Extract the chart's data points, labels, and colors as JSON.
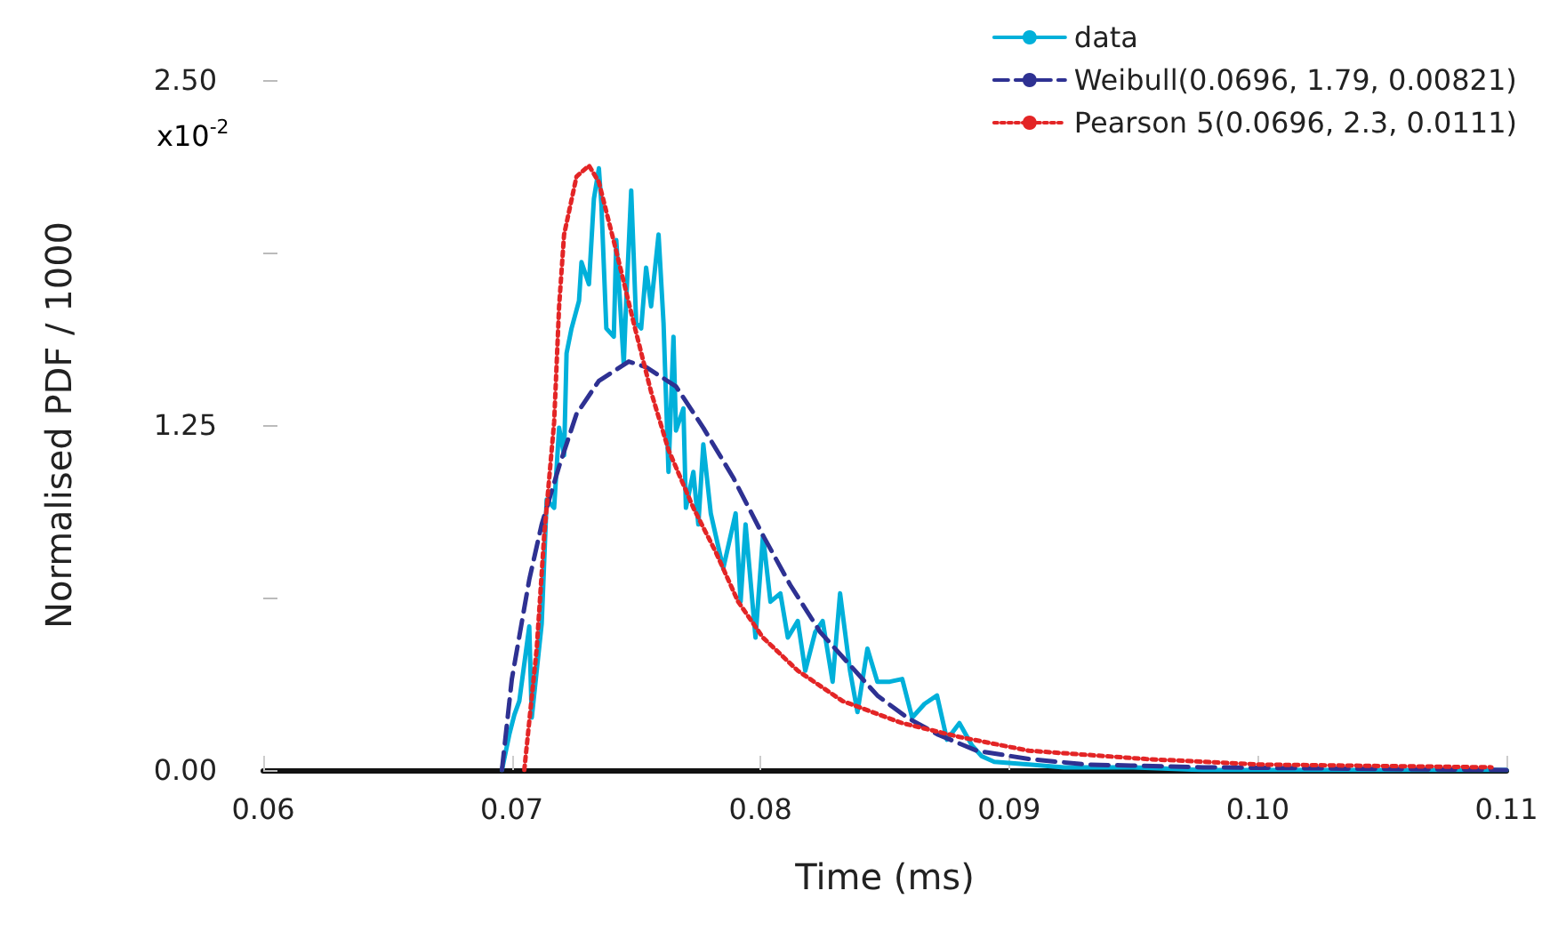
{
  "chart_data": {
    "type": "line",
    "xlabel": "Time (ms)",
    "ylabel": "Normalised PDF / 1000",
    "xlim": [
      0.06,
      0.11
    ],
    "xticks": [
      0.06,
      0.07,
      0.08,
      0.09,
      {
        "value": 0.1,
        "label": "0.10"
      },
      0.11
    ],
    "ylim": [
      0,
      2.5
    ],
    "yticks": [
      {
        "value": 0,
        "label": "0.00"
      },
      {
        "value": 0.625,
        "label": null
      },
      {
        "value": 1.25,
        "label": "1.25"
      },
      {
        "value": 1.875,
        "label": null
      },
      {
        "value": 2.5,
        "label": "2.50"
      }
    ],
    "annotations": [
      "x10$^{-2}$"
    ],
    "grid": false,
    "legend": "top right",
    "marker": "none",
    "series": [
      {
        "name": "data",
        "color": "#00b0da",
        "line_style": "solid",
        "x": [
          0.0696,
          0.0699,
          0.0701,
          0.0703,
          0.0707,
          0.0708,
          0.0712,
          0.0714,
          0.0717,
          0.0719,
          0.0721,
          0.0722,
          0.0724,
          0.0727,
          0.0728,
          0.0731,
          0.0733,
          0.0735,
          0.0736,
          0.0738,
          0.0741,
          0.0742,
          0.0745,
          0.0746,
          0.0748,
          0.075,
          0.0752,
          0.0754,
          0.0756,
          0.0759,
          0.0761,
          0.0763,
          0.0765,
          0.0766,
          0.0769,
          0.077,
          0.0773,
          0.0775,
          0.0777,
          0.078,
          0.0782,
          0.0785,
          0.079,
          0.0792,
          0.0794,
          0.0798,
          0.0801,
          0.0804,
          0.0808,
          0.0811,
          0.0815,
          0.0818,
          0.0822,
          0.0825,
          0.0829,
          0.0832,
          0.0836,
          0.0839,
          0.0843,
          0.0847,
          0.0852,
          0.0857,
          0.0861,
          0.0866,
          0.0871,
          0.0875,
          0.088,
          0.0885,
          0.0889,
          0.0894,
          0.0908,
          0.0922,
          0.095,
          0.0978,
          0.1034,
          0.11
        ],
        "values": [
          0,
          0.13,
          0.2,
          0.25,
          0.52,
          0.19,
          0.53,
          0.98,
          0.95,
          1.24,
          1.14,
          1.51,
          1.6,
          1.7,
          1.84,
          1.76,
          2.07,
          2.18,
          2.05,
          1.6,
          1.57,
          1.92,
          1.47,
          1.7,
          2.1,
          1.62,
          1.6,
          1.82,
          1.68,
          1.94,
          1.62,
          1.08,
          1.57,
          1.23,
          1.31,
          0.95,
          1.08,
          0.89,
          1.18,
          0.93,
          0.85,
          0.73,
          0.93,
          0.61,
          0.89,
          0.48,
          0.85,
          0.61,
          0.64,
          0.48,
          0.54,
          0.36,
          0.5,
          0.54,
          0.32,
          0.64,
          0.36,
          0.21,
          0.44,
          0.32,
          0.32,
          0.33,
          0.19,
          0.24,
          0.27,
          0.11,
          0.17,
          0.09,
          0.05,
          0.03,
          0.02,
          0.01,
          0.01,
          0,
          0,
          0
        ]
      },
      {
        "name": "Weibull(0.0696, 1.79, 0.00821)",
        "color": "#2e3192",
        "line_style": "dashed",
        "x": [
          0.0696,
          0.07,
          0.0707,
          0.0712,
          0.0719,
          0.0726,
          0.0735,
          0.0747,
          0.0754,
          0.0766,
          0.0777,
          0.0789,
          0.0801,
          0.0812,
          0.0824,
          0.0836,
          0.0847,
          0.0859,
          0.0871,
          0.0887,
          0.0908,
          0.0931,
          0.0978,
          0.11
        ],
        "values": [
          0,
          0.33,
          0.69,
          0.89,
          1.1,
          1.29,
          1.41,
          1.48,
          1.46,
          1.39,
          1.24,
          1.06,
          0.85,
          0.67,
          0.5,
          0.38,
          0.27,
          0.19,
          0.13,
          0.07,
          0.04,
          0.02,
          0.01,
          0
        ]
      },
      {
        "name": "Pearson 5(0.0696, 2.3, 0.0111)",
        "color": "#e32526",
        "line_style": "dotted",
        "x": [
          0.0705,
          0.071,
          0.0713,
          0.0717,
          0.0719,
          0.0721,
          0.0726,
          0.0731,
          0.0735,
          0.0742,
          0.0749,
          0.0756,
          0.0763,
          0.0773,
          0.0782,
          0.0791,
          0.0801,
          0.0815,
          0.0833,
          0.0857,
          0.088,
          0.0908,
          0.0955,
          0.1001,
          0.1094
        ],
        "values": [
          0,
          0.44,
          0.85,
          1.26,
          1.68,
          1.94,
          2.15,
          2.19,
          2.13,
          1.88,
          1.62,
          1.37,
          1.16,
          0.95,
          0.79,
          0.61,
          0.48,
          0.36,
          0.25,
          0.17,
          0.12,
          0.07,
          0.04,
          0.02,
          0.01
        ]
      }
    ]
  }
}
